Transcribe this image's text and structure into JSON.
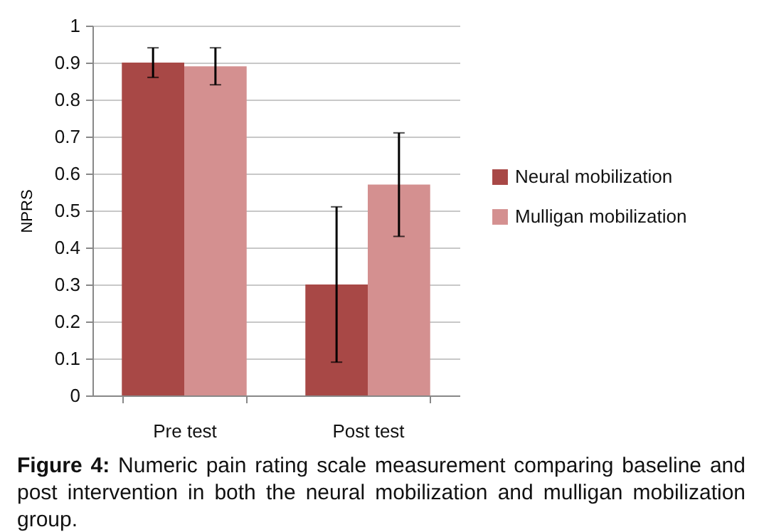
{
  "chart_data": {
    "type": "bar",
    "ylabel": "NPRS",
    "categories": [
      "Pre test",
      "Post test"
    ],
    "series": [
      {
        "name": "Neural mobilization",
        "color": "#a84846",
        "values": [
          0.9,
          0.3
        ],
        "errors": [
          [
            0.86,
            0.94
          ],
          [
            0.09,
            0.51
          ]
        ]
      },
      {
        "name": "Mulligan mobilization",
        "color": "#d49090",
        "values": [
          0.89,
          0.57
        ],
        "errors": [
          [
            0.84,
            0.94
          ],
          [
            0.43,
            0.71
          ]
        ]
      }
    ],
    "ylim": [
      0,
      1
    ],
    "yticks": [
      0,
      0.1,
      0.2,
      0.3,
      0.4,
      0.5,
      0.6,
      0.7,
      0.8,
      0.9,
      1
    ],
    "grid": "y",
    "legend": "right",
    "annotations": [
      "Figure 4: Numeric pain rating scale measurement comparing baseline and post intervention in both the neural mobilization and mulligan mobilization group."
    ]
  }
}
